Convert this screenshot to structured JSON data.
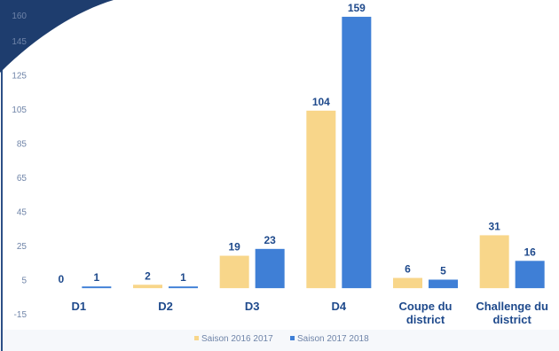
{
  "chart_data": {
    "type": "bar",
    "y_ticks": [
      -15,
      5,
      25,
      45,
      65,
      85,
      105,
      125,
      145,
      160
    ],
    "ylim": [
      -15,
      160
    ],
    "grid": false,
    "legend_position": "bottom",
    "categories": [
      [
        "D1"
      ],
      [
        "D2"
      ],
      [
        "D3"
      ],
      [
        "D4"
      ],
      [
        "Coupe du",
        "district"
      ],
      [
        "Challenge du",
        "district"
      ]
    ],
    "series": [
      {
        "name": "Saison 2016 2017",
        "color": "#f8d68a",
        "values": [
          0,
          2,
          19,
          104,
          6,
          31
        ]
      },
      {
        "name": "Saison 2017 2018",
        "color": "#3f7fd6",
        "values": [
          1,
          1,
          23,
          159,
          5,
          16
        ]
      }
    ]
  },
  "decor": {
    "corner_color": "#1e3d6e",
    "frame_color": "#2c4f86",
    "legend_band_color": "#f6f8fb"
  }
}
